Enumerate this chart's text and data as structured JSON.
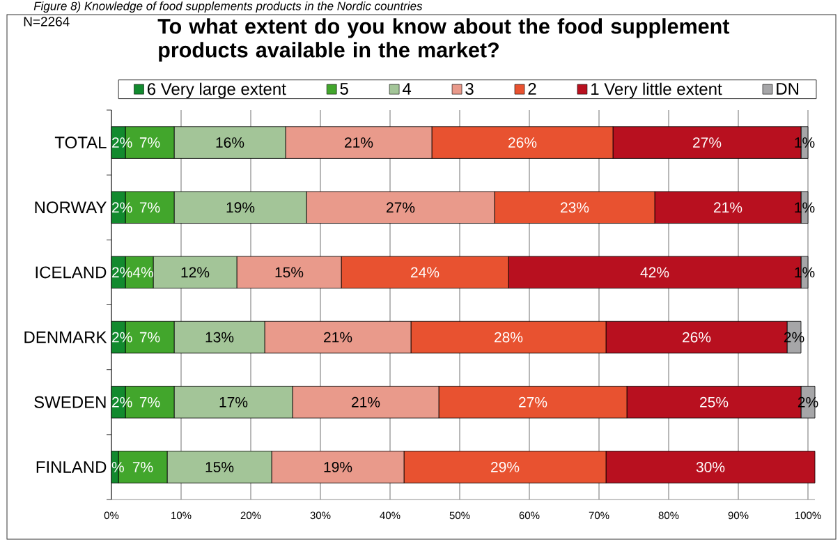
{
  "chart_data": {
    "type": "bar",
    "orientation": "horizontal",
    "stacked": true,
    "title": "To what extent do you know about the food supplement products available in the market?",
    "annotations": [
      "Figure 8) Knowledge of food supplements products in the Nordic countries",
      "N=2264"
    ],
    "categories": [
      "TOTAL",
      "NORWAY",
      "ICELAND",
      "DENMARK",
      "SWEDEN",
      "FINLAND"
    ],
    "series": [
      {
        "name": "6 Very large extent",
        "color": "#128a2e",
        "values": [
          2,
          2,
          2,
          2,
          2,
          1
        ],
        "value_labels": [
          "2%",
          "2%",
          "2%",
          "2%",
          "2%",
          "%"
        ]
      },
      {
        "name": "5",
        "color": "#42a62c",
        "values": [
          7,
          7,
          4,
          7,
          7,
          7
        ],
        "value_labels": [
          "7%",
          "7%",
          "4%",
          "7%",
          "7%",
          "7%"
        ]
      },
      {
        "name": "4",
        "color": "#a3c598",
        "values": [
          16,
          19,
          12,
          13,
          17,
          15
        ],
        "value_labels": [
          "16%",
          "19%",
          "12%",
          "13%",
          "17%",
          "15%"
        ]
      },
      {
        "name": "3",
        "color": "#e99a8b",
        "values": [
          21,
          27,
          15,
          21,
          21,
          19
        ],
        "value_labels": [
          "21%",
          "27%",
          "15%",
          "21%",
          "21%",
          "19%"
        ]
      },
      {
        "name": "2",
        "color": "#e85230",
        "values": [
          26,
          23,
          24,
          28,
          27,
          29
        ],
        "value_labels": [
          "26%",
          "23%",
          "24%",
          "28%",
          "27%",
          "29%"
        ]
      },
      {
        "name": "1 Very little extent",
        "color": "#b8101f",
        "values": [
          27,
          21,
          42,
          26,
          25,
          30
        ],
        "value_labels": [
          "27%",
          "21%",
          "42%",
          "26%",
          "25%",
          "30%"
        ]
      },
      {
        "name": "DN",
        "color": "#a6a6a8",
        "values": [
          1,
          1,
          1,
          2,
          2,
          null
        ],
        "value_labels": [
          "1%",
          "1%",
          "1%",
          "2%",
          "2%",
          null
        ]
      }
    ],
    "xlim": [
      0,
      101
    ],
    "xticks": [
      {
        "value": 0,
        "label": "0%"
      },
      {
        "value": 10,
        "label": "10%"
      },
      {
        "value": 20,
        "label": "20%"
      },
      {
        "value": 30,
        "label": "30%"
      },
      {
        "value": 40,
        "label": "40%"
      },
      {
        "value": 50,
        "label": "50%"
      },
      {
        "value": 60,
        "label": "60%"
      },
      {
        "value": 70,
        "label": "70%"
      },
      {
        "value": 80,
        "label": "80%"
      },
      {
        "value": 90,
        "label": "90%"
      },
      {
        "value": 100,
        "label": "100%"
      }
    ],
    "grid": "x",
    "legend": "top"
  }
}
